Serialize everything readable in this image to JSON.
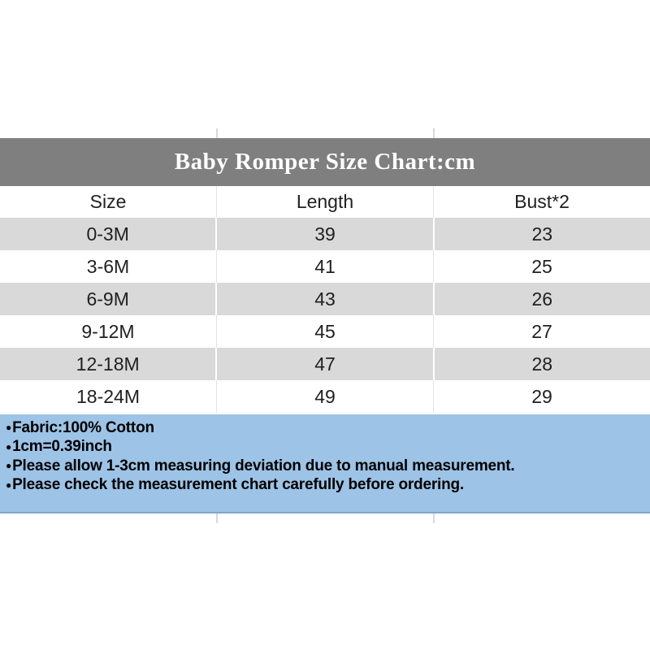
{
  "chart_data": {
    "type": "table",
    "title": "Baby Romper Size Chart:cm",
    "columns": [
      "Size",
      "Length",
      "Bust*2"
    ],
    "rows": [
      [
        "0-3M",
        "39",
        "23"
      ],
      [
        "3-6M",
        "41",
        "25"
      ],
      [
        "6-9M",
        "43",
        "26"
      ],
      [
        "9-12M",
        "45",
        "27"
      ],
      [
        "12-18M",
        "47",
        "28"
      ],
      [
        "18-24M",
        "49",
        "29"
      ]
    ]
  },
  "notes": {
    "bullet": "●",
    "lines": [
      "Fabric:100% Cotton",
      "1cm=0.39inch",
      "Please allow 1-3cm measuring deviation due to manual measurement.",
      "Please check the measurement chart carefully before ordering."
    ]
  },
  "colors": {
    "title_band": "#7f7f7f",
    "title_text": "#ffffff",
    "row_alt": "#d9d9d9",
    "row_white": "#ffffff",
    "cell_text": "#212121",
    "notes_bg": "#9dc3e6",
    "notes_border": "#7da7cd",
    "notes_text": "#000000"
  }
}
